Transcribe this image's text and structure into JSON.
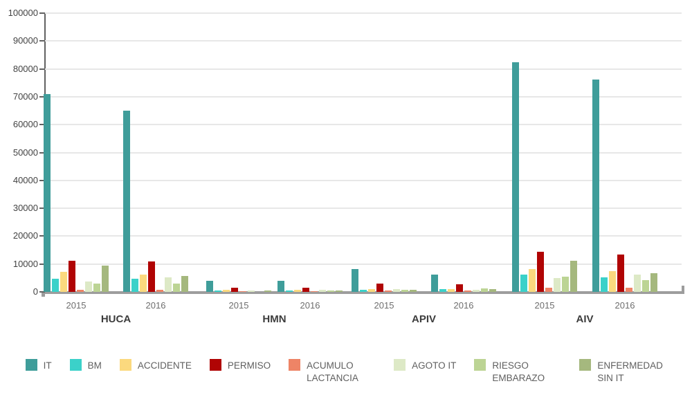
{
  "chart_data": {
    "type": "bar",
    "title": "",
    "xlabel": "",
    "ylabel": "",
    "legend_position": "bottom-center",
    "grid": true,
    "y_axis": {
      "min": 0,
      "max": 100000,
      "tick_step": 10000,
      "tick_labels": [
        "0",
        "10000",
        "20000",
        "30000",
        "40000",
        "50000",
        "60000",
        "70000",
        "80000",
        "90000",
        "100000"
      ]
    },
    "groups": [
      "HUCA",
      "HMN",
      "APIV",
      "AIV"
    ],
    "years": [
      "2015",
      "2016"
    ],
    "columns": [
      "HUCA 2015",
      "HUCA 2016",
      "HMN 2015",
      "HMN 2016",
      "APIV 2015",
      "APIV 2016",
      "AIV 2015",
      "AIV 2016"
    ],
    "series": [
      {
        "name": "IT",
        "color": "#3f9d9a",
        "values": [
          71000,
          65000,
          4000,
          4000,
          8200,
          6100,
          82500,
          76200
        ]
      },
      {
        "name": "BM",
        "color": "#3bd1c9",
        "values": [
          4700,
          4700,
          500,
          600,
          800,
          900,
          6200,
          5100
        ]
      },
      {
        "name": "ACCIDENTE",
        "color": "#fbd97e",
        "values": [
          7200,
          6300,
          700,
          800,
          900,
          1000,
          8300,
          7400
        ]
      },
      {
        "name": "PERMISO",
        "color": "#b00404",
        "values": [
          11200,
          11000,
          1400,
          1500,
          3000,
          2700,
          14400,
          13400
        ]
      },
      {
        "name": "ACUMULO LACTANCIA",
        "color": "#ee8466",
        "values": [
          800,
          800,
          300,
          300,
          400,
          400,
          1500,
          1500
        ]
      },
      {
        "name": "AGOTO IT",
        "color": "#dde9c6",
        "values": [
          3600,
          5100,
          500,
          700,
          900,
          700,
          4900,
          6200
        ]
      },
      {
        "name": "RIESGO EMBARAZO",
        "color": "#bcd494",
        "values": [
          3000,
          3100,
          0,
          600,
          700,
          1300,
          5400,
          4100
        ]
      },
      {
        "name": "ENFERMEDAD SIN IT",
        "color": "#a5b87e",
        "values": [
          9500,
          5700,
          500,
          600,
          700,
          1000,
          11100,
          6800
        ]
      }
    ]
  }
}
